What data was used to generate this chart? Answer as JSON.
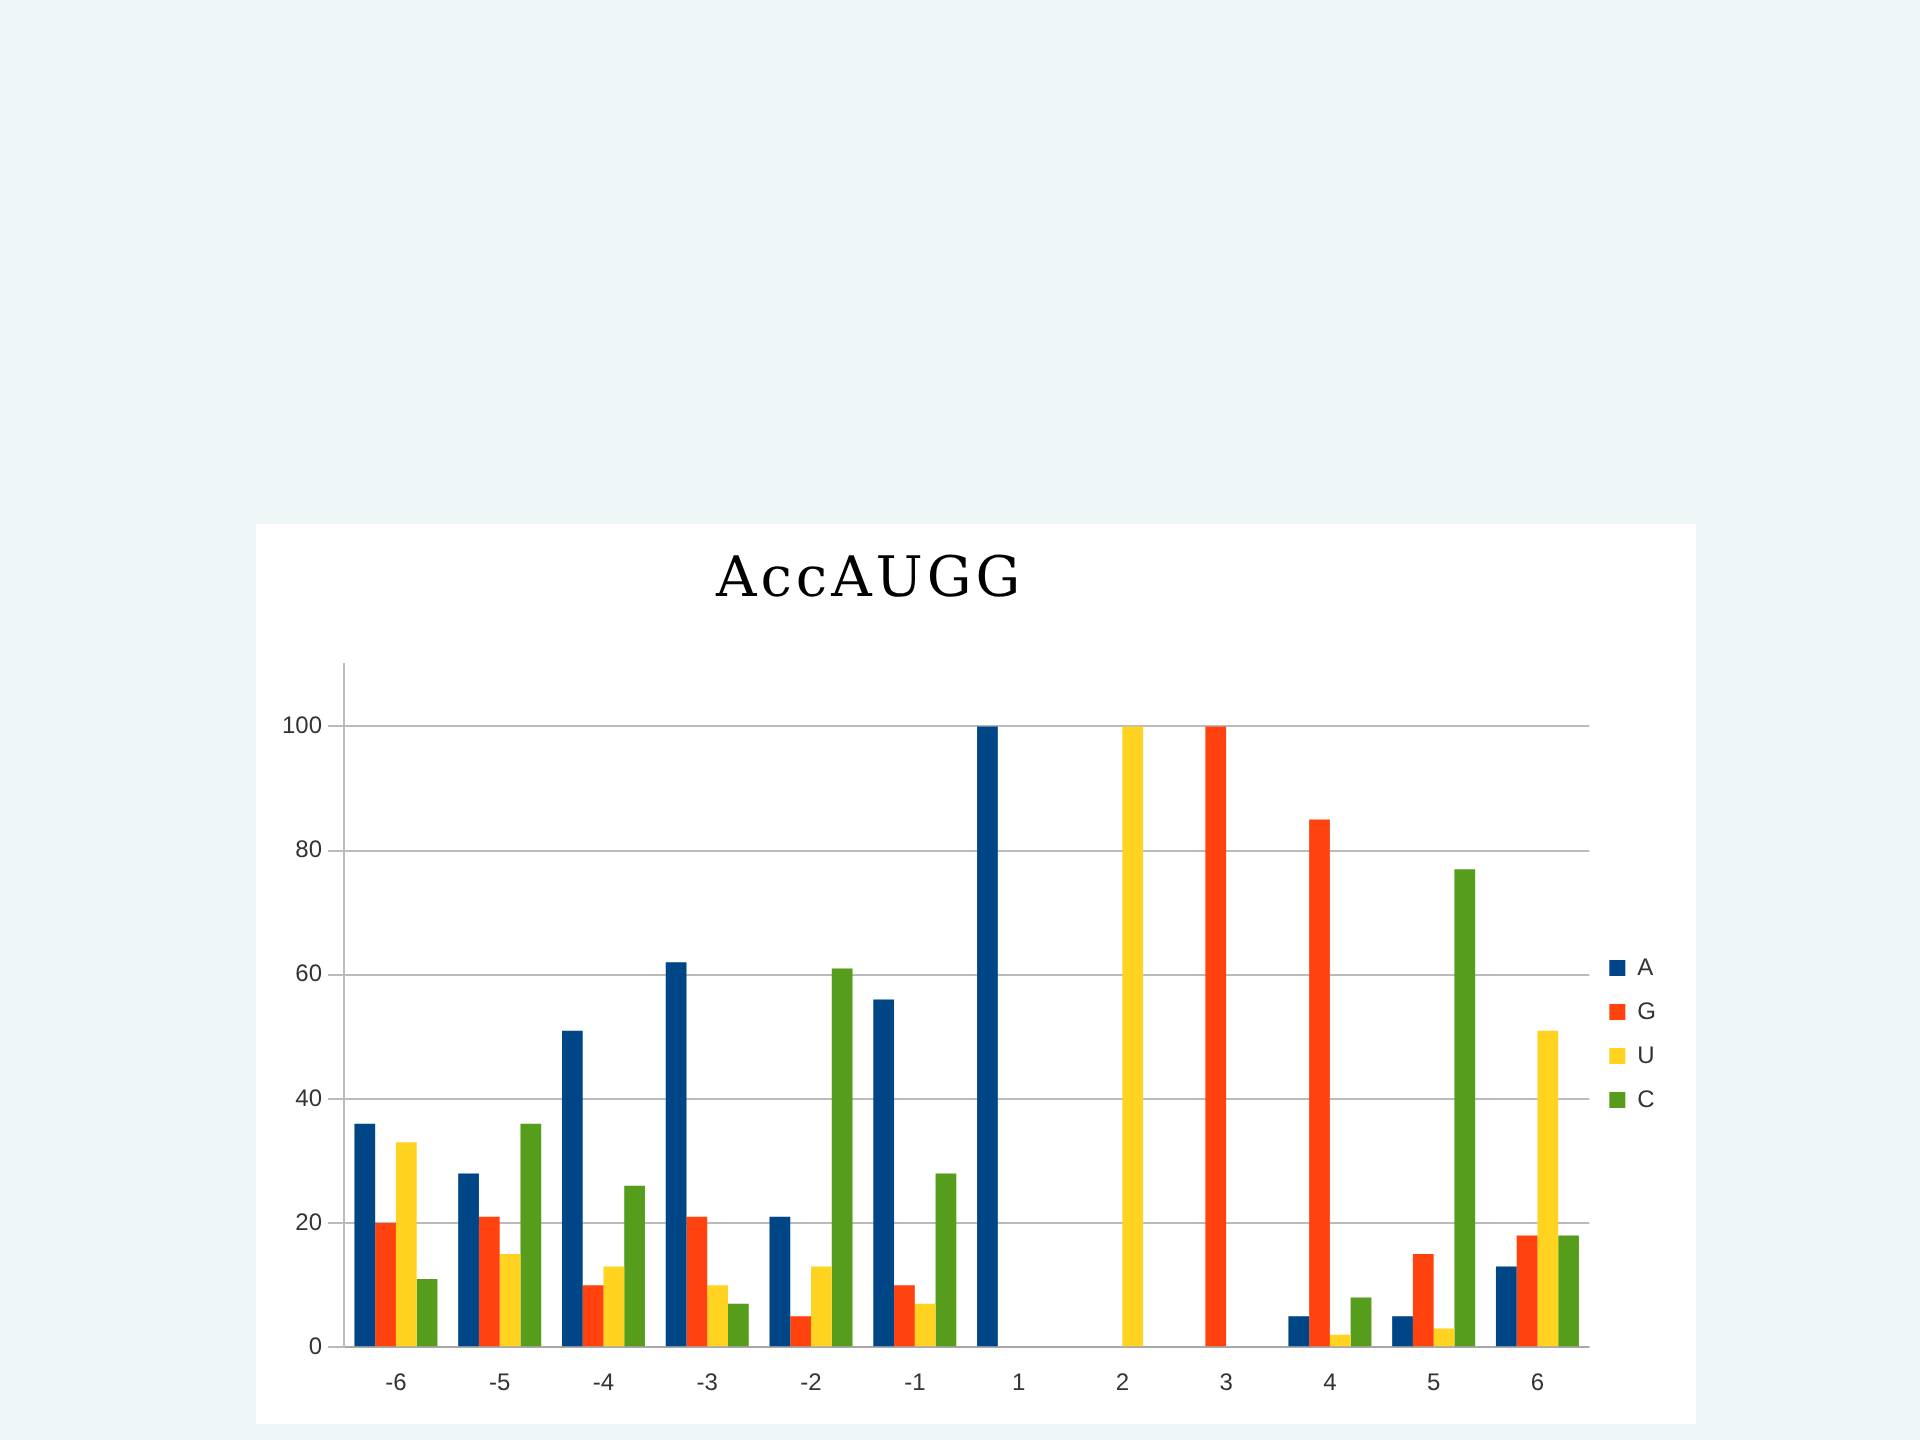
{
  "chart_data": {
    "type": "bar",
    "categories": [
      "-6",
      "-5",
      "-4",
      "-3",
      "-2",
      "-1",
      "1",
      "2",
      "3",
      "4",
      "5",
      "6"
    ],
    "series": [
      {
        "name": "A",
        "color": "#004586",
        "values": [
          36,
          28,
          51,
          62,
          21,
          56,
          100,
          0,
          0,
          5,
          5,
          13
        ]
      },
      {
        "name": "G",
        "color": "#ff420e",
        "values": [
          20,
          21,
          10,
          21,
          5,
          10,
          0,
          0,
          100,
          85,
          15,
          18
        ]
      },
      {
        "name": "U",
        "color": "#ffd320",
        "values": [
          33,
          15,
          13,
          10,
          13,
          7,
          0,
          100,
          0,
          2,
          3,
          51
        ]
      },
      {
        "name": "C",
        "color": "#579d1c",
        "values": [
          11,
          36,
          26,
          7,
          61,
          28,
          0,
          0,
          0,
          8,
          77,
          18
        ]
      }
    ],
    "ylim": [
      0,
      110
    ],
    "yticks": [
      0,
      20,
      40,
      60,
      80,
      100
    ],
    "grid": "y",
    "legend": "right",
    "annotations": [
      "AccAUGG"
    ]
  }
}
